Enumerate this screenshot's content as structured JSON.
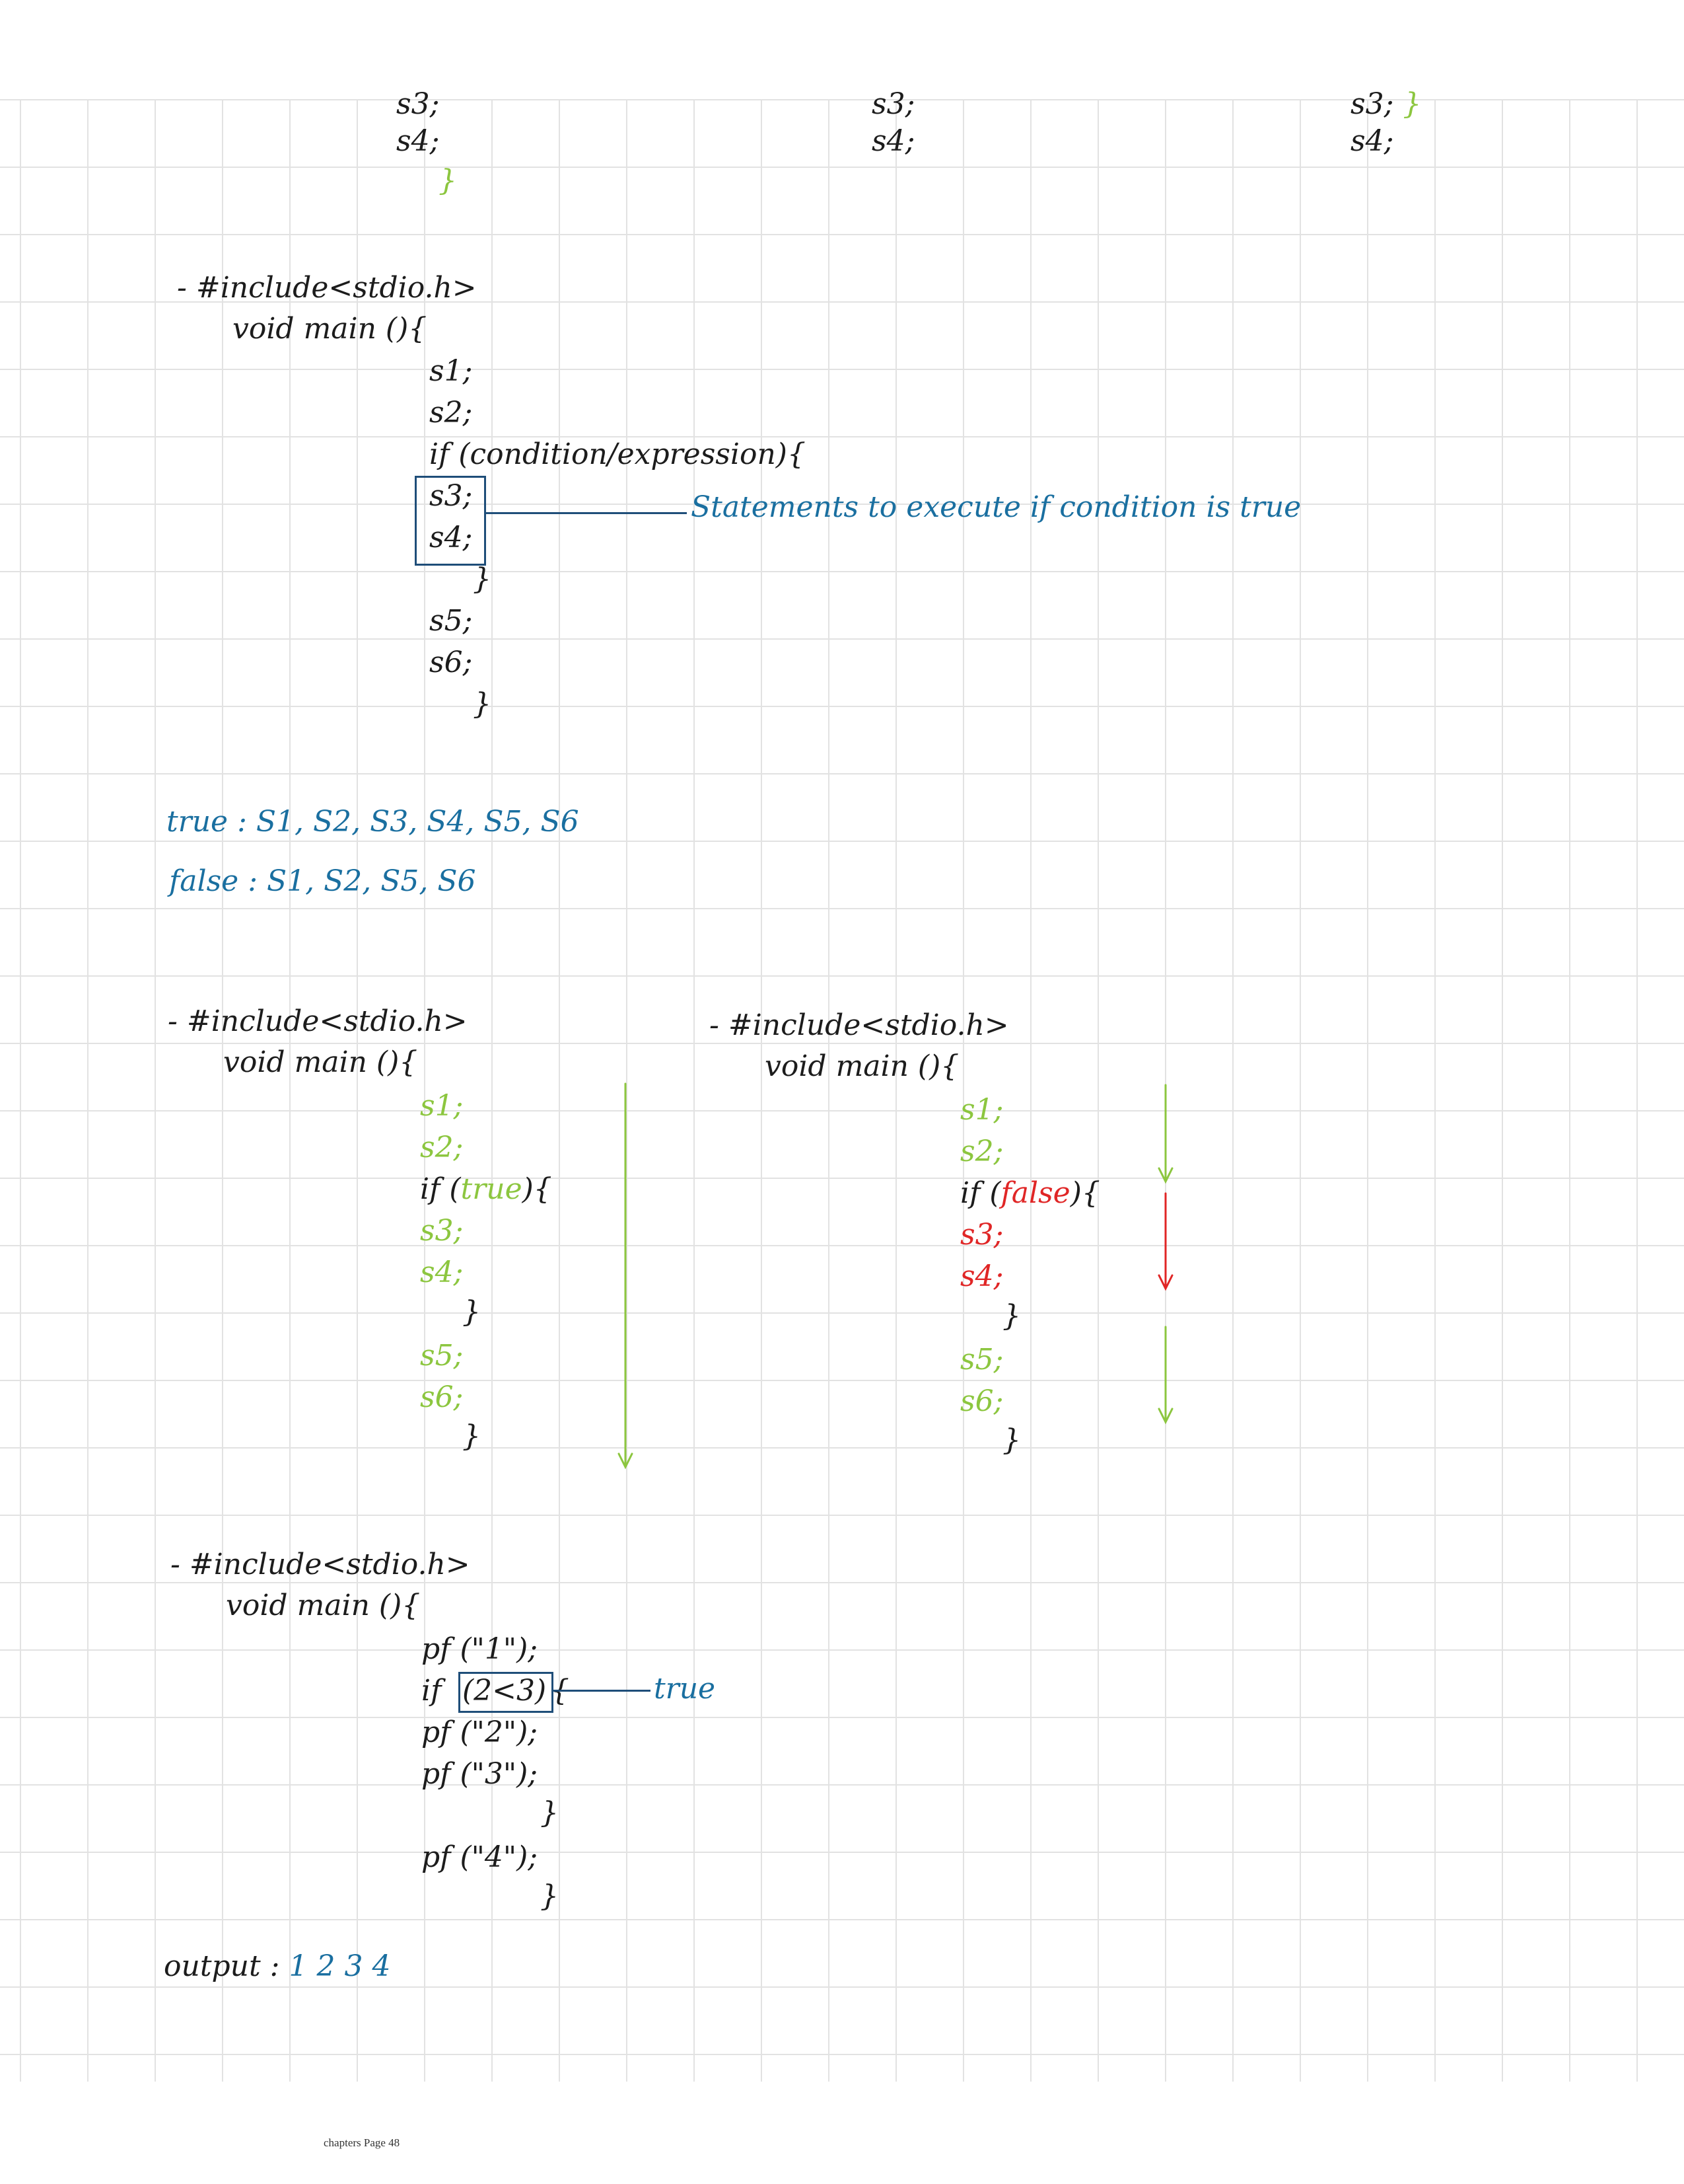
{
  "top_fragment": {
    "col1": [
      "s3;",
      "s4;",
      "}"
    ],
    "col2": [
      "s3;",
      "s4;"
    ],
    "col3_line1": "s3;",
    "col3_brace": "}",
    "col3_line2": "s4;"
  },
  "example1": {
    "include": "- #include<stdio.h>",
    "main": "void main (){",
    "s1": "s1;",
    "s2": "s2;",
    "if_line": "if (condition/expression){",
    "s3": "s3;",
    "s4": "s4;",
    "close_if": "}",
    "s5": "s5;",
    "s6": "s6;",
    "close_main": "}",
    "annotation": "Statements to execute if condition is true"
  },
  "summary": {
    "true_line": "true : S1, S2, S3, S4, S5, S6",
    "false_word": "false",
    "false_rest": " : S1, S2, S5, S6"
  },
  "example_true": {
    "include": "- #include<stdio.h>",
    "main": "void main (){",
    "s1": "s1;",
    "s2": "s2;",
    "if_open": "if (",
    "cond": "true",
    "if_close": "){",
    "s3": "s3;",
    "s4": "s4;",
    "close_if": "}",
    "s5": "s5;",
    "s6": "s6;",
    "close_main": "}"
  },
  "example_false": {
    "include": "- #include<stdio.h>",
    "main": "void main (){",
    "s1": "s1;",
    "s2": "s2;",
    "if_open": "if (",
    "cond": "false",
    "if_close": "){",
    "s3": "s3;",
    "s4": "s4;",
    "close_if": "}",
    "s5": "s5;",
    "s6": "s6;",
    "close_main": "}"
  },
  "example_pf": {
    "include": "- #include<stdio.h>",
    "main": "void main (){",
    "pf1": "pf (\"1\");",
    "if_word": "if",
    "cond": "(2<3)",
    "brace": "{",
    "annotation": "true",
    "pf2": "pf (\"2\");",
    "pf3": "pf (\"3\");",
    "close_if": "}",
    "pf4": "pf (\"4\");",
    "close_main": "}",
    "output_label": "output : ",
    "output_value": "1 2 3 4"
  },
  "footer": "chapters Page 48",
  "colors": {
    "ink": "#1c1c1c",
    "annotation_blue": "#1a6fa0",
    "box_blue": "#1f4e79",
    "executed_green": "#8cc63f",
    "skipped_red": "#e02626",
    "grid": "#e2e2e2"
  }
}
